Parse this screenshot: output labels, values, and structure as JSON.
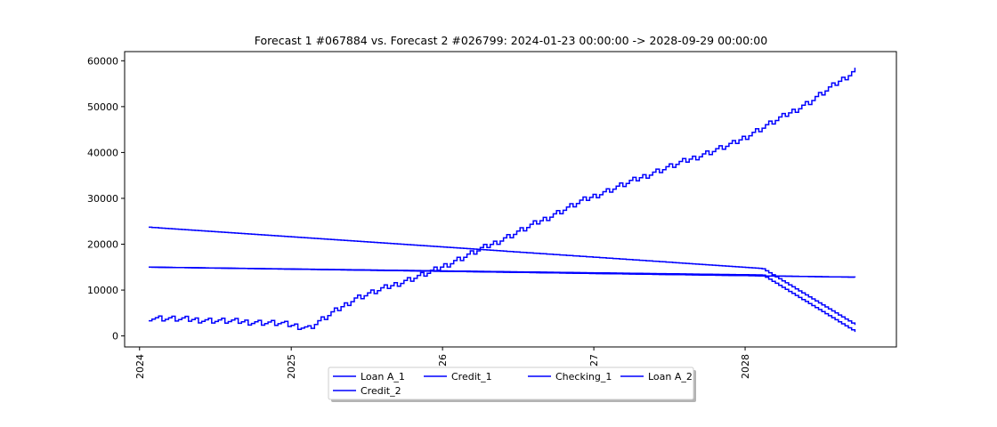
{
  "chart_data": {
    "type": "line",
    "title": "Forecast 1 #067884 vs. Forecast 2 #026799: 2024-01-23 00:00:00 -> 2028-09-29 00:00:00",
    "xlabel": "",
    "ylabel": "",
    "x_ticks": [
      "2024",
      "2025",
      "2026",
      "2027",
      "2028"
    ],
    "y_ticks": [
      "0",
      "10000",
      "20000",
      "30000",
      "40000",
      "50000",
      "60000"
    ],
    "ylim": [
      -2400,
      62000
    ],
    "xlim": [
      "2023-11-26",
      "2028-12-31"
    ],
    "grid": false,
    "legend_placement": "below-center",
    "line_color": "#0000ff",
    "series": [
      {
        "name": "Loan A_1",
        "x": [
          "2024-01-23",
          "2028-02-10",
          "2028-09-29"
        ],
        "values": [
          23700,
          14700,
          2000
        ]
      },
      {
        "name": "Credit_1",
        "x": [
          "2024-01-23",
          "2024-06-01",
          "2024-12-01",
          "2025-02-10",
          "2025-06-01",
          "2025-12-01",
          "2026-06-01",
          "2026-12-01",
          "2027-06-01",
          "2027-12-01",
          "2028-06-01",
          "2028-09-29"
        ],
        "values": [
          4000,
          3500,
          2800,
          1800,
          8200,
          14000,
          21500,
          29500,
          36000,
          42000,
          51000,
          58500
        ]
      },
      {
        "name": "Checking_1",
        "x": [
          "2024-01-23",
          "2028-09-29"
        ],
        "values": [
          15000,
          12800
        ]
      },
      {
        "name": "Loan A_2",
        "x": [
          "2024-01-23",
          "2028-02-10",
          "2028-09-29"
        ],
        "values": [
          15000,
          13300,
          500
        ]
      },
      {
        "name": "Credit_2",
        "x": [
          "2024-01-23",
          "2028-09-29"
        ],
        "values": [
          15000,
          12800
        ]
      }
    ]
  }
}
